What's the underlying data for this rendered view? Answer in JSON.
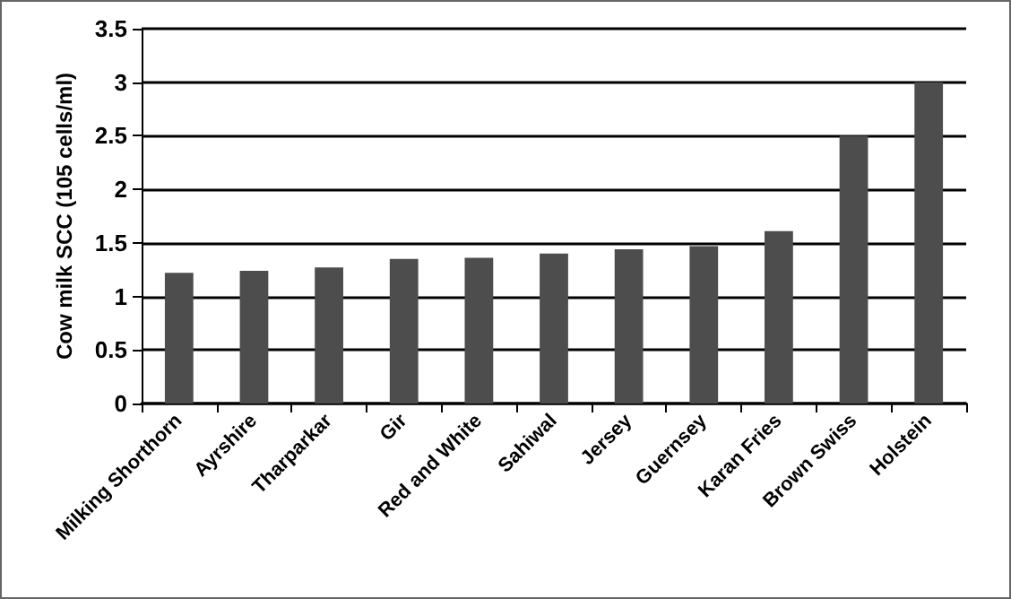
{
  "chart_data": {
    "type": "bar",
    "ylabel": "Cow milk SCC (105 cells/ml)",
    "categories": [
      "Milking Shorthorn",
      "Ayrshire",
      "Tharparkar",
      "Gir",
      "Red and White",
      "Sahiwal",
      "Jersey",
      "Guernsey",
      "Karan Fries",
      "Brown Swiss",
      "Holstein"
    ],
    "values": [
      1.22,
      1.24,
      1.27,
      1.35,
      1.36,
      1.4,
      1.44,
      1.47,
      1.61,
      2.5,
      3.0
    ],
    "color": "#4d4d4d",
    "ylim": [
      0,
      3.5
    ],
    "yticks": [
      0,
      0.5,
      1,
      1.5,
      2,
      2.5,
      3,
      3.5
    ],
    "grid": "y"
  }
}
